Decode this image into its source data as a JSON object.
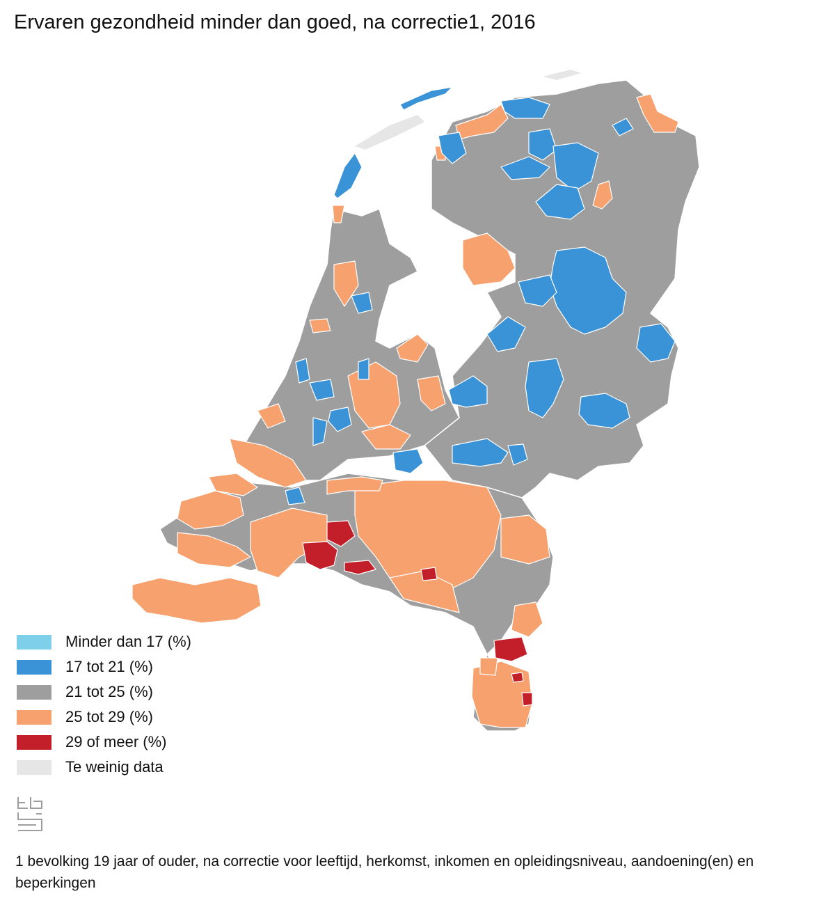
{
  "title": "Ervaren gezondheid minder dan goed, na correctie1, 2016",
  "colors": {
    "cat1": "#7ecfea",
    "cat2": "#3a93d6",
    "cat3": "#9e9e9e",
    "cat4": "#f7a16f",
    "cat5": "#c21f2a",
    "nodata": "#e6e6e6",
    "border": "#ffffff"
  },
  "legend": [
    {
      "label": "Minder dan 17 (%)",
      "color": "#7ecfea"
    },
    {
      "label": "17 tot 21 (%)",
      "color": "#3a93d6"
    },
    {
      "label": "21 tot 25 (%)",
      "color": "#9e9e9e"
    },
    {
      "label": "25 tot 29 (%)",
      "color": "#f7a16f"
    },
    {
      "label": "29 of meer (%)",
      "color": "#c21f2a"
    },
    {
      "label": "Te weinig data",
      "color": "#e6e6e6"
    }
  ],
  "logo": "cbs-logo",
  "footnote": "1 bevolking 19 jaar of ouder, na correctie voor leeftijd, herkomst, inkomen en opleidingsniveau, aandoening(en) en beperkingen"
}
